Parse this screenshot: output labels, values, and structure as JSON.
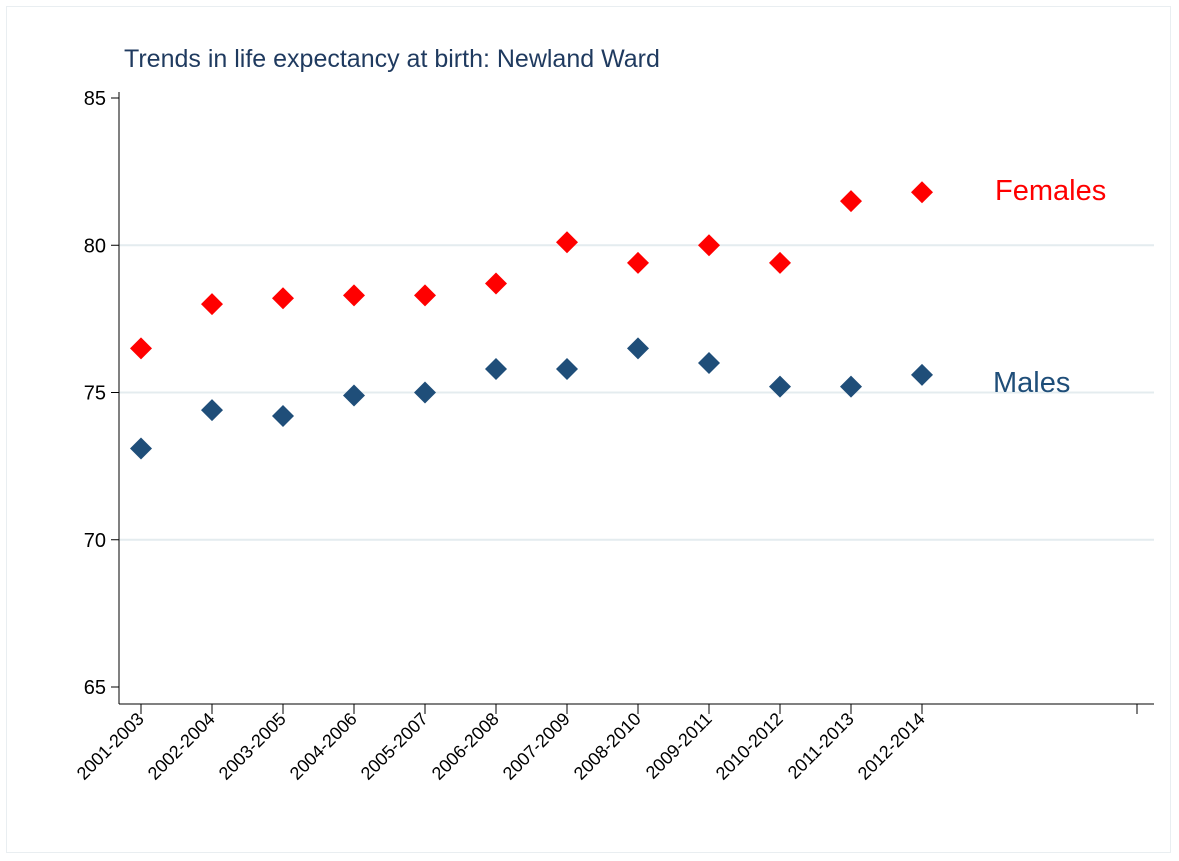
{
  "chart_data": {
    "type": "scatter",
    "title": "Trends in life expectancy at birth: Newland Ward",
    "xlabel": "",
    "ylabel": "",
    "categories": [
      "2001-2003",
      "2002-2004",
      "2003-2005",
      "2004-2006",
      "2005-2007",
      "2006-2008",
      "2007-2009",
      "2008-2010",
      "2009-2011",
      "2010-2012",
      "2011-2013",
      "2012-2014"
    ],
    "ylim": [
      65,
      85
    ],
    "yticks": [
      65,
      70,
      75,
      80,
      85
    ],
    "grid": true,
    "extra_x_tick": true,
    "series": [
      {
        "name": "Females",
        "color": "#ff0000",
        "marker": "diamond",
        "values": [
          76.5,
          78.0,
          78.2,
          78.3,
          78.3,
          78.7,
          80.1,
          79.4,
          80.0,
          79.4,
          81.5,
          81.8
        ]
      },
      {
        "name": "Males",
        "color": "#1f4e79",
        "marker": "diamond",
        "values": [
          73.1,
          74.4,
          74.2,
          74.9,
          75.0,
          75.8,
          75.8,
          76.5,
          76.0,
          75.2,
          75.2,
          75.6
        ]
      }
    ]
  }
}
